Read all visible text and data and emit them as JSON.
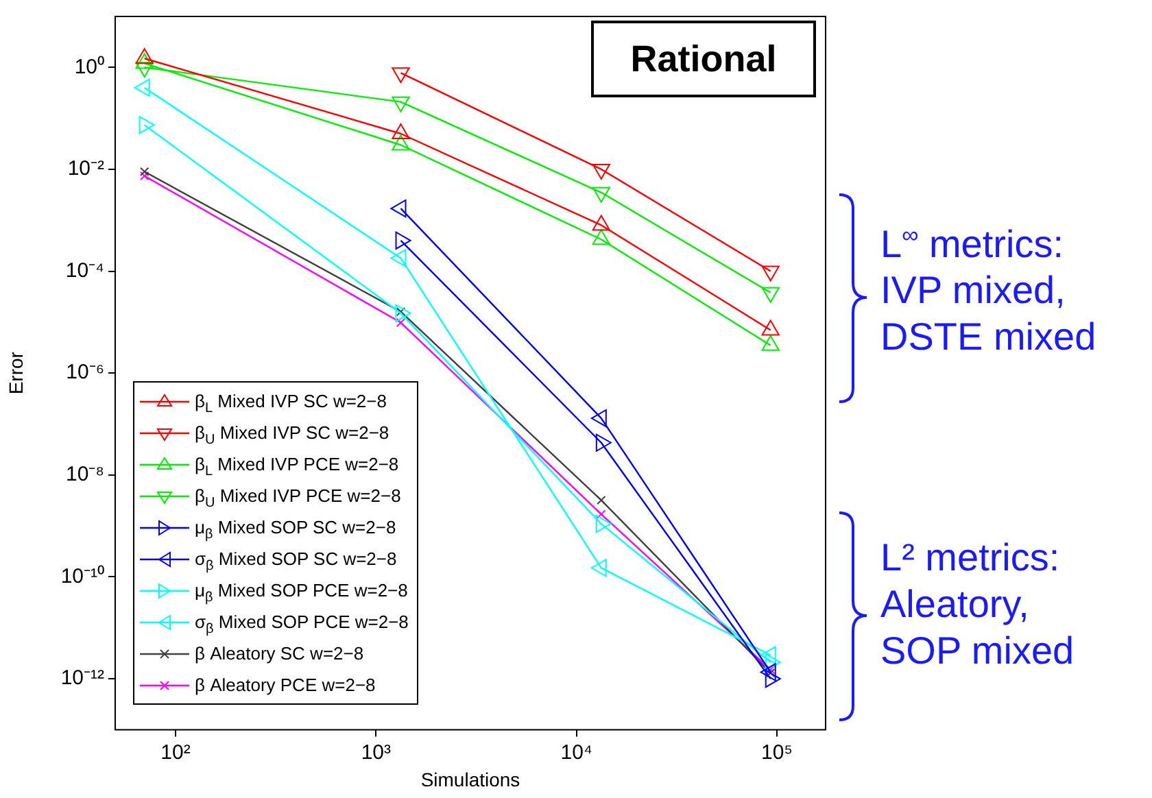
{
  "chart_data": {
    "type": "line",
    "xlabel": "Simulations",
    "ylabel": "Error",
    "log": "xy",
    "grid": false,
    "legend": "bottom left",
    "line_style": "solid",
    "x": [
      70,
      1330,
      13300,
      93000
    ],
    "xlim": [
      50,
      175000
    ],
    "ylim": [
      1e-13,
      10
    ],
    "xticks": [
      {
        "value": 100,
        "label": "10²"
      },
      {
        "value": 1000,
        "label": "10³"
      },
      {
        "value": 10000,
        "label": "10⁴"
      },
      {
        "value": 100000,
        "label": "10⁵"
      }
    ],
    "yticks": [
      {
        "value": 1e-12,
        "label": "10⁻¹²"
      },
      {
        "value": 1e-10,
        "label": "10⁻¹⁰"
      },
      {
        "value": 1e-08,
        "label": "10⁻⁸"
      },
      {
        "value": 1e-06,
        "label": "10⁻⁶"
      },
      {
        "value": 0.0001,
        "label": "10⁻⁴"
      },
      {
        "value": 0.01,
        "label": "10⁻²"
      },
      {
        "value": 1,
        "label": "10⁰"
      }
    ],
    "series": [
      {
        "name": "β$_{L}$ Mixed IVP SC w=2−8",
        "color": "#ff0000",
        "marker": "triangle-up",
        "values": [
          1.5,
          0.05,
          0.0008,
          7e-06
        ]
      },
      {
        "name": "β$_{U}$ Mixed IVP SC w=2−8",
        "color": "#ff0000",
        "marker": "triangle-down",
        "values": [
          null,
          0.78,
          0.01,
          0.0001
        ]
      },
      {
        "name": "β$_{L}$ Mixed IVP PCE w=2−8",
        "color": "#00ee00",
        "marker": "triangle-up",
        "values": [
          1.2,
          0.03,
          0.00042,
          3.5e-06
        ]
      },
      {
        "name": "β$_{U}$ Mixed IVP PCE w=2−8",
        "color": "#00ee00",
        "marker": "triangle-down",
        "values": [
          1.0,
          0.21,
          0.0035,
          3.8e-05
        ]
      },
      {
        "name": "μ$_{β}$ Mixed SOP SC w=2−8",
        "color": "#0000ff",
        "marker": "triangle-right",
        "values": [
          null,
          0.0004,
          4.3e-08,
          1e-12
        ]
      },
      {
        "name": "σ$_{β}$ Mixed SOP SC w=2−8",
        "color": "#0000ff",
        "marker": "triangle-left",
        "values": [
          null,
          0.0017,
          1.3e-07,
          1.35e-12
        ]
      },
      {
        "name": "μ$_{β}$ Mixed SOP PCE w=2−8",
        "color": "#00ffff",
        "marker": "triangle-right",
        "values": [
          0.074,
          1.5e-05,
          1.1e-09,
          2.1e-12
        ]
      },
      {
        "name": "σ$_{β}$ Mixed SOP PCE w=2−8",
        "color": "#00ffff",
        "marker": "triangle-left",
        "values": [
          0.4,
          0.00018,
          1.5e-10,
          2.9e-12
        ]
      },
      {
        "name": "β Aleatory SC w=2−8",
        "color": "#404040",
        "marker": "cross",
        "values": [
          0.009,
          1.6e-05,
          3.2e-09,
          1.3e-12
        ]
      },
      {
        "name": "β Aleatory PCE w=2−8",
        "color": "#ff00ff",
        "marker": "cross",
        "values": [
          0.0074,
          9.8e-06,
          1.7e-09,
          1.5e-12
        ]
      }
    ],
    "annotations": [
      "Rational",
      "L$^{∞}$ metrics:\nIVP mixed,\nDSTE mixed",
      "L² metrics:\nAleatory,\nSOP mixed"
    ]
  }
}
